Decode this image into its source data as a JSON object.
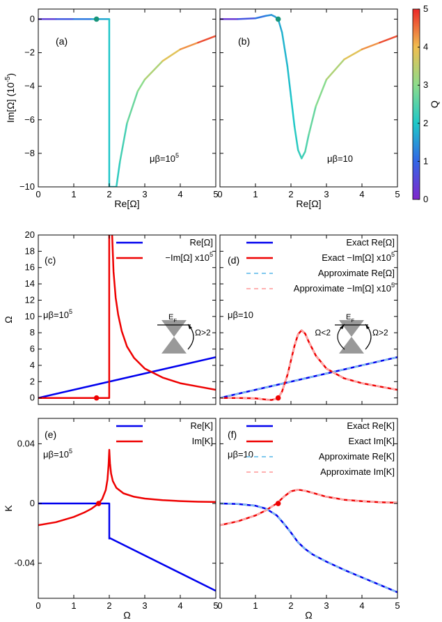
{
  "colorbar": {
    "label": "Q",
    "min": 0,
    "max": 5,
    "ticks": [
      "0",
      "1",
      "2",
      "3",
      "4",
      "5"
    ]
  },
  "chart_data": [
    {
      "id": "a",
      "type": "line",
      "panel_label": "(a)",
      "xlabel": "Re[Ω]",
      "ylabel": "Im[Ω] (10^-5)",
      "xlim": [
        0,
        5
      ],
      "ylim": [
        -10,
        0.6
      ],
      "xticks": [
        "0",
        "1",
        "2",
        "3",
        "4",
        "5"
      ],
      "yticks": [
        "0",
        "−2",
        "−4",
        "−6",
        "−8",
        "−10"
      ],
      "annotation": "μβ=10^5",
      "color_encoding": "Q",
      "series": [
        {
          "x": [
            0,
            0.5,
            1.0,
            1.5,
            1.999,
            1.999,
            2.01,
            2.2
          ],
          "y": [
            0,
            0,
            0,
            0,
            0,
            -10,
            -10,
            -10
          ],
          "q": [
            0.2,
            0.6,
            1.0,
            1.4,
            1.95,
            2.0,
            2.0,
            2.05
          ]
        },
        {
          "x": [
            2.2,
            2.3,
            2.5,
            2.8,
            3.0,
            3.5,
            4.0,
            4.5,
            5.0
          ],
          "y": [
            -10,
            -8.5,
            -6.2,
            -4.3,
            -3.6,
            -2.5,
            -1.8,
            -1.4,
            -1.0
          ],
          "q": [
            2.1,
            2.2,
            2.5,
            2.9,
            3.1,
            3.6,
            4.1,
            4.5,
            5.0
          ]
        }
      ],
      "marker": {
        "x": 1.64,
        "y": 0,
        "color": "#17957a"
      }
    },
    {
      "id": "b",
      "type": "line",
      "panel_label": "(b)",
      "xlabel": "Re[Ω]",
      "ylabel": "",
      "xlim": [
        0,
        5
      ],
      "ylim": [
        -10,
        0.6
      ],
      "xticks": [
        "0",
        "1",
        "2",
        "3",
        "4",
        "5"
      ],
      "yticks": [],
      "annotation": "μβ=10",
      "color_encoding": "Q",
      "series": [
        {
          "x": [
            0,
            0.5,
            1.0,
            1.3,
            1.45,
            1.55,
            1.64,
            1.75,
            1.9,
            2.0,
            2.1,
            2.2,
            2.3,
            2.4,
            2.5,
            2.7,
            3.0,
            3.5,
            4.0,
            4.5,
            5.0
          ],
          "y": [
            0,
            0,
            0.05,
            0.2,
            0.25,
            0.15,
            0,
            -0.8,
            -2.8,
            -4.6,
            -6.4,
            -7.8,
            -8.3,
            -7.9,
            -6.9,
            -5.2,
            -3.6,
            -2.4,
            -1.8,
            -1.4,
            -1.0
          ],
          "q": [
            0.1,
            0.5,
            1.0,
            1.3,
            1.45,
            1.55,
            1.62,
            1.75,
            1.85,
            1.95,
            2.05,
            2.15,
            2.25,
            2.4,
            2.55,
            2.8,
            3.1,
            3.6,
            4.1,
            4.5,
            5.0
          ]
        }
      ],
      "marker": {
        "x": 1.64,
        "y": 0,
        "color": "#17957a"
      }
    },
    {
      "id": "c",
      "type": "line",
      "panel_label": "(c)",
      "xlabel": "",
      "ylabel": "Ω",
      "xlim": [
        0,
        5
      ],
      "ylim": [
        -0.8,
        20
      ],
      "xticks": [],
      "yticks": [
        "0",
        "2",
        "4",
        "6",
        "8",
        "10",
        "12",
        "14",
        "16",
        "18",
        "20"
      ],
      "annotation": "μβ=10^5",
      "legend": [
        "Re[Ω]",
        "−Im[Ω] x10^5"
      ],
      "inset": {
        "label": "E_F",
        "arrow_label": "Ω>2"
      },
      "series": [
        {
          "name": "Re[Ω]",
          "color": "#0000ee",
          "x": [
            0,
            5
          ],
          "y": [
            0,
            5
          ]
        },
        {
          "name": "−Im[Ω] x10^5",
          "color": "#ee0000",
          "x": [
            0,
            1.999,
            1.999,
            2.05,
            2.08,
            2.12,
            2.18,
            2.25,
            2.35,
            2.5,
            2.7,
            3.0,
            3.5,
            4.0,
            4.5,
            5.0
          ],
          "y": [
            0,
            0,
            22,
            22,
            20,
            15.5,
            12.3,
            10.2,
            8.2,
            6.3,
            4.9,
            3.6,
            2.5,
            1.8,
            1.4,
            1.0
          ]
        }
      ],
      "marker": {
        "x": 1.64,
        "y": 0,
        "color": "#ee0000"
      }
    },
    {
      "id": "d",
      "type": "line",
      "panel_label": "(d)",
      "xlabel": "",
      "ylabel": "",
      "xlim": [
        0,
        5
      ],
      "ylim": [
        -0.8,
        20
      ],
      "xticks": [],
      "yticks": [],
      "annotation": "μβ=10",
      "legend": [
        "Exact Re[Ω]",
        "Exact −Im[Ω] x10^5",
        "Approximate Re[Ω]",
        "Approximate −Im[Ω] x10^5"
      ],
      "inset": {
        "label": "E_F",
        "left_arrow_label": "Ω<2",
        "right_arrow_label": "Ω>2"
      },
      "series": [
        {
          "name": "Exact Re[Ω]",
          "color": "#0000ee",
          "x": [
            0,
            5
          ],
          "y": [
            0,
            5
          ]
        },
        {
          "name": "Exact −Im[Ω] x10^5",
          "color": "#ee0000",
          "x": [
            0,
            0.5,
            1.0,
            1.3,
            1.45,
            1.55,
            1.64,
            1.75,
            1.9,
            2.0,
            2.1,
            2.2,
            2.3,
            2.4,
            2.5,
            2.7,
            3.0,
            3.5,
            4.0,
            4.5,
            5.0
          ],
          "y": [
            0,
            0,
            -0.05,
            -0.2,
            -0.25,
            -0.15,
            0,
            0.8,
            2.8,
            4.6,
            6.4,
            7.8,
            8.3,
            7.9,
            6.9,
            5.2,
            3.6,
            2.4,
            1.8,
            1.4,
            1.0
          ]
        },
        {
          "name": "Approximate Re[Ω]",
          "color": "#7fc8ee",
          "dashed": true,
          "x": [
            0,
            5
          ],
          "y": [
            0,
            5
          ]
        },
        {
          "name": "Approximate −Im[Ω] x10^5",
          "color": "#ffb0b0",
          "dashed": true,
          "x": [
            0,
            0.5,
            1.0,
            1.3,
            1.45,
            1.55,
            1.64,
            1.75,
            1.9,
            2.0,
            2.1,
            2.2,
            2.3,
            2.4,
            2.5,
            2.7,
            3.0,
            3.5,
            4.0,
            4.5,
            5.0
          ],
          "y": [
            0,
            0,
            -0.05,
            -0.2,
            -0.25,
            -0.15,
            0,
            0.8,
            2.8,
            4.6,
            6.4,
            7.8,
            8.3,
            7.9,
            6.9,
            5.2,
            3.6,
            2.4,
            1.8,
            1.4,
            1.0
          ]
        }
      ],
      "marker": {
        "x": 1.64,
        "y": 0,
        "color": "#ee0000"
      }
    },
    {
      "id": "e",
      "type": "line",
      "panel_label": "(e)",
      "xlabel": "Ω",
      "ylabel": "K",
      "xlim": [
        0,
        5
      ],
      "ylim": [
        -0.0635,
        0.057
      ],
      "xticks": [
        "0",
        "1",
        "2",
        "3",
        "4",
        "5"
      ],
      "yticks": [
        "0.04",
        "0",
        "-0.04"
      ],
      "annotation": "μβ=10^5",
      "legend": [
        "Re[K]",
        "Im[K]"
      ],
      "series": [
        {
          "name": "Re[K]",
          "color": "#0000ee",
          "x": [
            0,
            2.0,
            2.0,
            2.02,
            5.0
          ],
          "y": [
            0,
            0,
            -0.0235,
            -0.0232,
            -0.0585
          ]
        },
        {
          "name": "Im[K]",
          "color": "#ee0000",
          "x": [
            0,
            0.5,
            1.0,
            1.3,
            1.5,
            1.7,
            1.8,
            1.9,
            1.95,
            1.98,
            2.0,
            2.02,
            2.05,
            2.1,
            2.2,
            2.4,
            2.7,
            3.0,
            3.5,
            4.0,
            4.5,
            5.0
          ],
          "y": [
            -0.0145,
            -0.0125,
            -0.009,
            -0.006,
            -0.0035,
            0,
            0.003,
            0.009,
            0.016,
            0.026,
            0.036,
            0.027,
            0.02,
            0.015,
            0.0105,
            0.0068,
            0.0045,
            0.0033,
            0.0022,
            0.0016,
            0.0012,
            0.001
          ]
        }
      ],
      "marker": {
        "x": 1.7,
        "y": 0,
        "color": "#ee0000"
      }
    },
    {
      "id": "f",
      "type": "line",
      "panel_label": "(f)",
      "xlabel": "Ω",
      "ylabel": "",
      "xlim": [
        0,
        5
      ],
      "ylim": [
        -0.0635,
        0.057
      ],
      "xticks": [
        "0",
        "1",
        "2",
        "3",
        "4",
        "5"
      ],
      "yticks": [],
      "annotation": "μβ=10",
      "legend": [
        "Exact Re[K]",
        "Exact Im[K]",
        "Approximate Re[K]",
        "Approximate Im[K]"
      ],
      "series": [
        {
          "name": "Exact Re[K]",
          "color": "#0000ee",
          "x": [
            0,
            0.5,
            1.0,
            1.3,
            1.6,
            1.8,
            2.0,
            2.2,
            2.4,
            2.6,
            3.0,
            3.5,
            4.0,
            4.5,
            5.0
          ],
          "y": [
            0,
            -0.0003,
            -0.0015,
            -0.0035,
            -0.008,
            -0.0135,
            -0.0195,
            -0.026,
            -0.0305,
            -0.034,
            -0.039,
            -0.0445,
            -0.0495,
            -0.0545,
            -0.0595
          ]
        },
        {
          "name": "Exact Im[K]",
          "color": "#ee0000",
          "x": [
            0,
            0.5,
            1.0,
            1.3,
            1.6,
            1.8,
            2.0,
            2.2,
            2.4,
            2.7,
            3.0,
            3.5,
            4.0,
            4.5,
            5.0
          ],
          "y": [
            -0.0145,
            -0.012,
            -0.008,
            -0.0045,
            0,
            0.0045,
            0.0082,
            0.0092,
            0.0085,
            0.0065,
            0.0045,
            0.0025,
            0.0015,
            0.0008,
            0.0005
          ]
        },
        {
          "name": "Approximate Re[K]",
          "color": "#7fc8ee",
          "dashed": true,
          "x": [
            0,
            0.5,
            1.0,
            1.3,
            1.6,
            1.8,
            2.0,
            2.2,
            2.4,
            2.6,
            3.0,
            3.5,
            4.0,
            4.5,
            5.0
          ],
          "y": [
            0,
            -0.0003,
            -0.0015,
            -0.0035,
            -0.008,
            -0.0135,
            -0.0195,
            -0.026,
            -0.0305,
            -0.034,
            -0.039,
            -0.0445,
            -0.0495,
            -0.0545,
            -0.0595
          ]
        },
        {
          "name": "Approximate Im[K]",
          "color": "#ffb0b0",
          "dashed": true,
          "x": [
            0,
            0.5,
            1.0,
            1.3,
            1.6,
            1.8,
            2.0,
            2.2,
            2.4,
            2.7,
            3.0,
            3.5,
            4.0,
            4.5,
            5.0
          ],
          "y": [
            -0.0145,
            -0.012,
            -0.008,
            -0.0045,
            0,
            0.0045,
            0.0082,
            0.0092,
            0.0085,
            0.0065,
            0.0045,
            0.0025,
            0.0015,
            0.0008,
            0.0005
          ]
        }
      ],
      "marker": {
        "x": 1.64,
        "y": 0,
        "color": "#ee0000"
      }
    }
  ]
}
